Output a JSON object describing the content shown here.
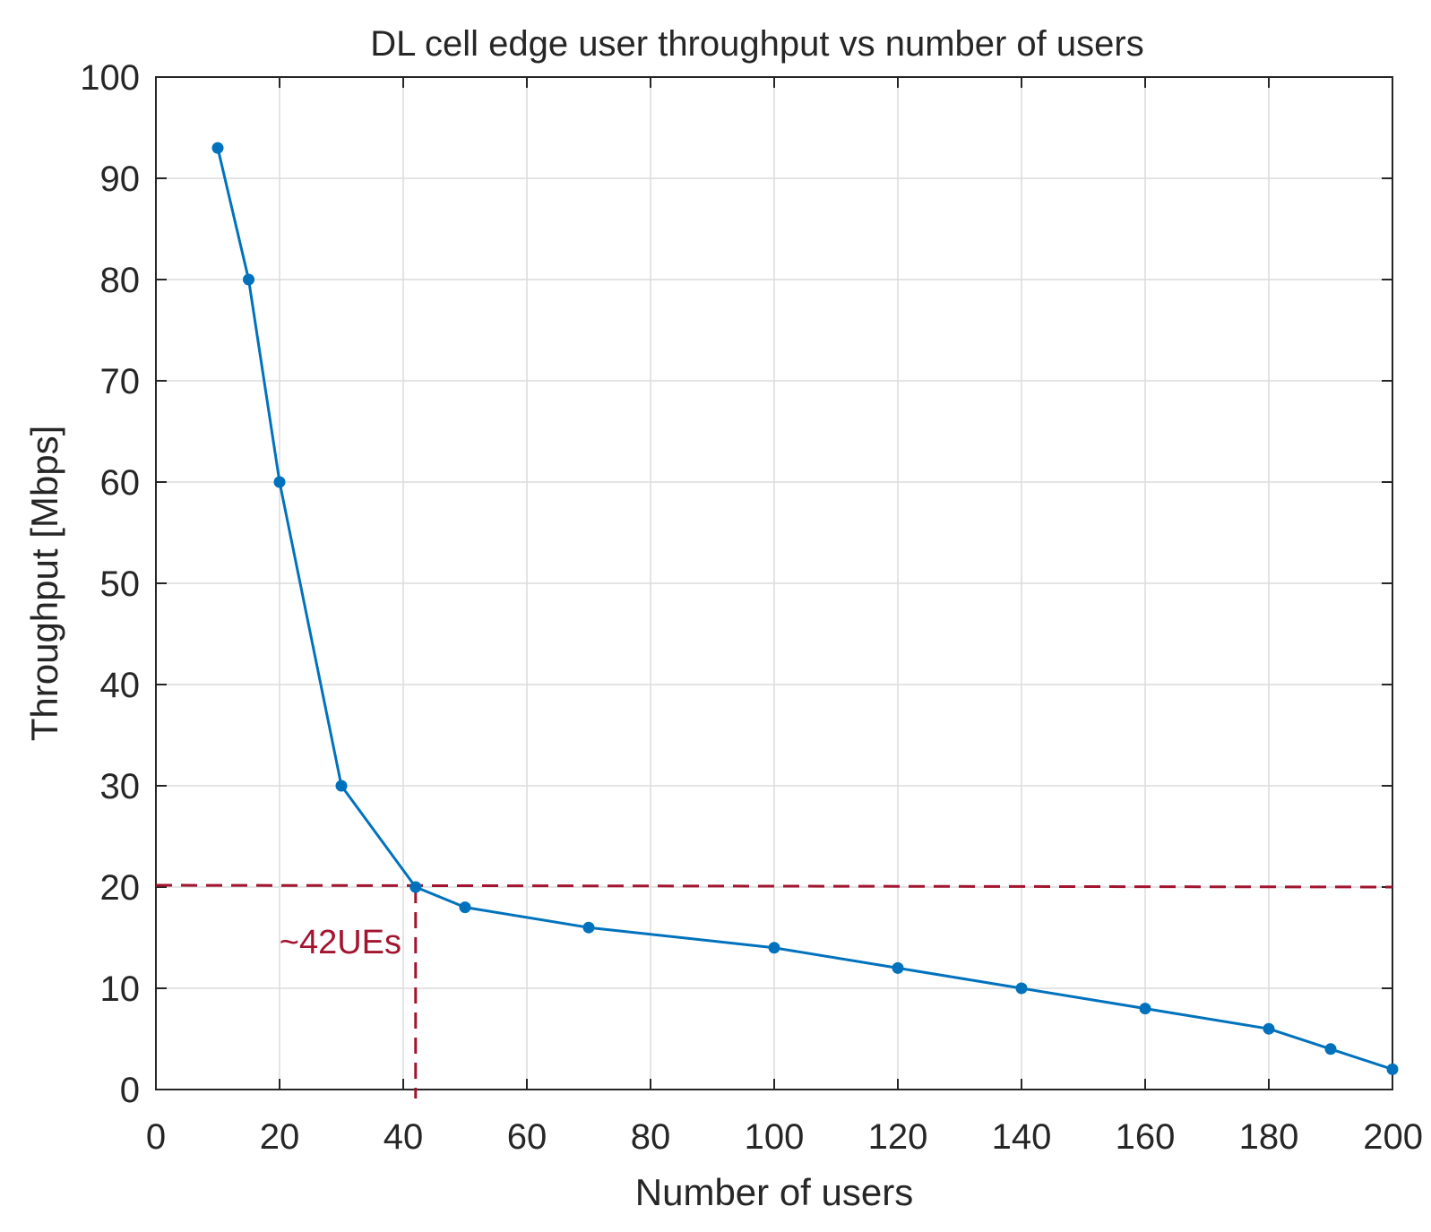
{
  "colors": {
    "series": "#0072BD",
    "threshold": "#A2142F",
    "axis": "#262626",
    "grid": "#DCDCDC",
    "background": "#FFFFFF"
  },
  "chart_data": {
    "type": "line",
    "title": "DL cell edge user throughput vs number of users",
    "xlabel": "Number of users",
    "ylabel": "Throughput [Mbps]",
    "xlim": [
      0,
      200
    ],
    "ylim": [
      0,
      100
    ],
    "xticks": [
      0,
      20,
      40,
      60,
      80,
      100,
      120,
      140,
      160,
      180,
      200
    ],
    "yticks": [
      0,
      10,
      20,
      30,
      40,
      50,
      60,
      70,
      80,
      90,
      100
    ],
    "grid": true,
    "markers": true,
    "series": [
      {
        "x": [
          10,
          15,
          20,
          30,
          42,
          50,
          70,
          100,
          120,
          140,
          160,
          180,
          190,
          200
        ],
        "y": [
          93,
          80,
          60,
          30,
          20,
          18,
          16,
          14,
          12,
          10,
          8,
          6,
          4,
          2
        ]
      }
    ],
    "annotations": {
      "threshold_y": 20,
      "threshold_x": 42,
      "label": "~42UEs"
    }
  }
}
